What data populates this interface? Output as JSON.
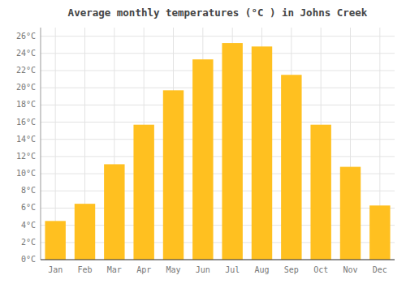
{
  "chart_data": {
    "type": "bar",
    "title": "Average monthly temperatures (°C ) in Johns Creek",
    "categories": [
      "Jan",
      "Feb",
      "Mar",
      "Apr",
      "May",
      "Jun",
      "Jul",
      "Aug",
      "Sep",
      "Oct",
      "Nov",
      "Dec"
    ],
    "values": [
      4.5,
      6.5,
      11.1,
      15.7,
      19.7,
      23.3,
      25.2,
      24.8,
      21.5,
      15.7,
      10.8,
      6.3
    ],
    "color": "#FFC020",
    "ylim": [
      0,
      27
    ],
    "yticks": [
      {
        "value": 0,
        "label": "0°C"
      },
      {
        "value": 2,
        "label": "2°C"
      },
      {
        "value": 4,
        "label": "4°C"
      },
      {
        "value": 6,
        "label": "6°C"
      },
      {
        "value": 8,
        "label": "8°C"
      },
      {
        "value": 10,
        "label": "10°C"
      },
      {
        "value": 12,
        "label": "12°C"
      },
      {
        "value": 14,
        "label": "14°C"
      },
      {
        "value": 16,
        "label": "16°C"
      },
      {
        "value": 18,
        "label": "18°C"
      },
      {
        "value": 20,
        "label": "20°C"
      },
      {
        "value": 22,
        "label": "22°C"
      },
      {
        "value": 24,
        "label": "24°C"
      },
      {
        "value": 26,
        "label": "26°C"
      }
    ],
    "grid": true
  }
}
